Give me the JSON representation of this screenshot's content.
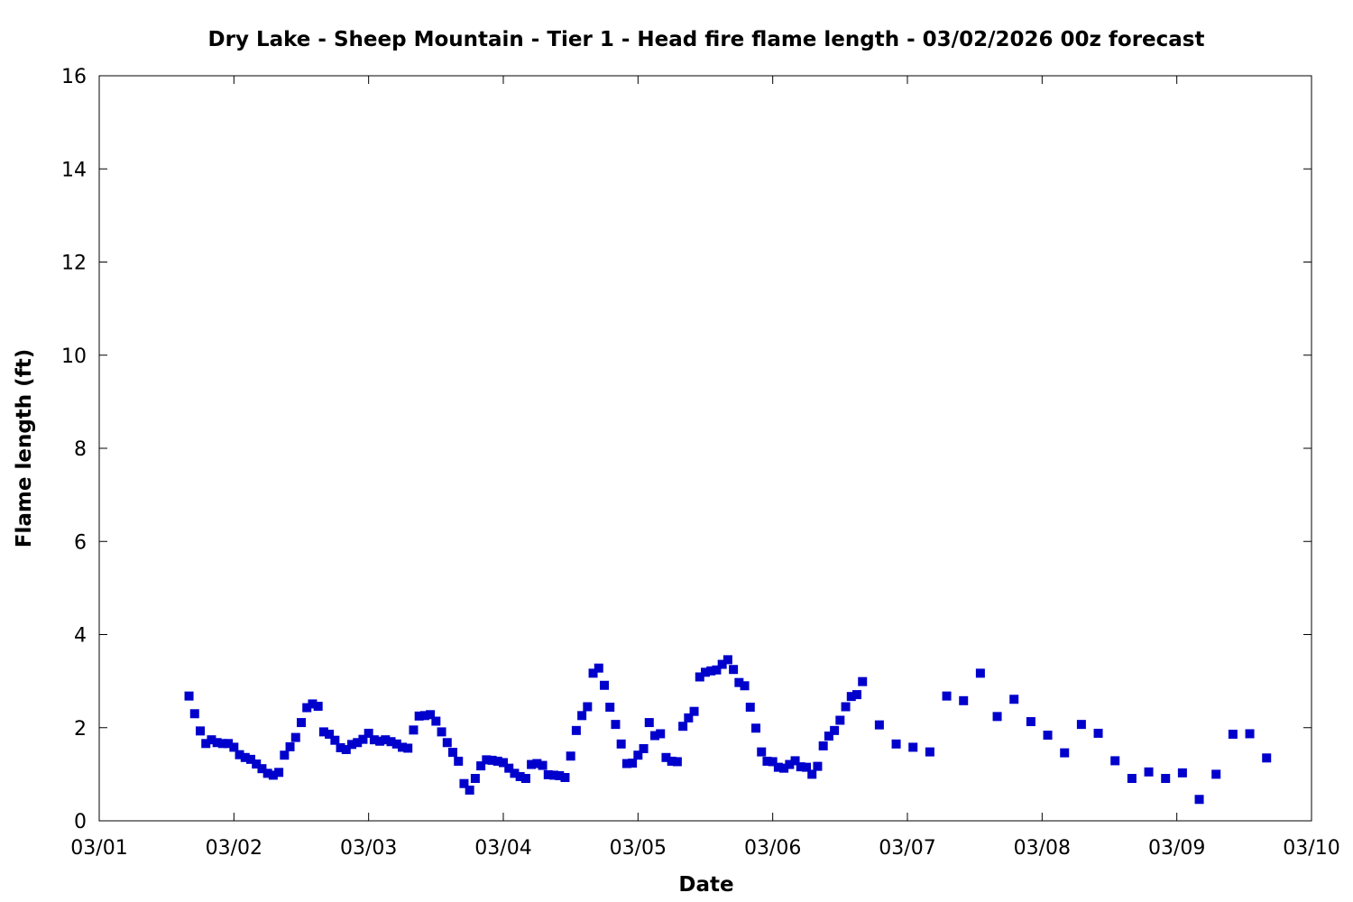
{
  "chart_data": {
    "type": "scatter",
    "title": "Dry Lake - Sheep Mountain - Tier 1 - Head fire flame length - 03/02/2026 00z forecast",
    "xlabel": "Date",
    "ylabel": "Flame length (ft)",
    "xlim": [
      "2026-03-01T00:00",
      "2026-03-10T00:00"
    ],
    "ylim": [
      0,
      16
    ],
    "x_tick_labels": [
      "03/01",
      "03/02",
      "03/03",
      "03/04",
      "03/05",
      "03/06",
      "03/07",
      "03/08",
      "03/09",
      "03/10"
    ],
    "y_tick_labels": [
      "0",
      "2",
      "4",
      "6",
      "8",
      "10",
      "12",
      "14",
      "16"
    ],
    "grid": false,
    "marker_color": "#0000cc",
    "series": [
      {
        "x": [
          "2026-03-01T16:00",
          "2026-03-01T17:00",
          "2026-03-01T18:00",
          "2026-03-01T19:00",
          "2026-03-01T20:00",
          "2026-03-01T21:00",
          "2026-03-01T22:00",
          "2026-03-01T23:00",
          "2026-03-02T00:00",
          "2026-03-02T01:00",
          "2026-03-02T02:00",
          "2026-03-02T03:00",
          "2026-03-02T04:00",
          "2026-03-02T05:00",
          "2026-03-02T06:00",
          "2026-03-02T07:00",
          "2026-03-02T08:00",
          "2026-03-02T09:00",
          "2026-03-02T10:00",
          "2026-03-02T11:00",
          "2026-03-02T12:00",
          "2026-03-02T13:00",
          "2026-03-02T14:00",
          "2026-03-02T15:00",
          "2026-03-02T16:00",
          "2026-03-02T17:00",
          "2026-03-02T18:00",
          "2026-03-02T19:00",
          "2026-03-02T20:00",
          "2026-03-02T21:00",
          "2026-03-02T22:00",
          "2026-03-02T23:00",
          "2026-03-03T00:00",
          "2026-03-03T01:00",
          "2026-03-03T02:00",
          "2026-03-03T03:00",
          "2026-03-03T04:00",
          "2026-03-03T05:00",
          "2026-03-03T06:00",
          "2026-03-03T07:00",
          "2026-03-03T08:00",
          "2026-03-03T09:00",
          "2026-03-03T10:00",
          "2026-03-03T11:00",
          "2026-03-03T12:00",
          "2026-03-03T13:00",
          "2026-03-03T14:00",
          "2026-03-03T15:00",
          "2026-03-03T16:00",
          "2026-03-03T17:00",
          "2026-03-03T18:00",
          "2026-03-03T19:00",
          "2026-03-03T20:00",
          "2026-03-03T21:00",
          "2026-03-03T22:00",
          "2026-03-03T23:00",
          "2026-03-04T00:00",
          "2026-03-04T01:00",
          "2026-03-04T02:00",
          "2026-03-04T03:00",
          "2026-03-04T04:00",
          "2026-03-04T05:00",
          "2026-03-04T06:00",
          "2026-03-04T07:00",
          "2026-03-04T08:00",
          "2026-03-04T09:00",
          "2026-03-04T10:00",
          "2026-03-04T11:00",
          "2026-03-04T12:00",
          "2026-03-04T13:00",
          "2026-03-04T14:00",
          "2026-03-04T15:00",
          "2026-03-04T16:00",
          "2026-03-04T17:00",
          "2026-03-04T18:00",
          "2026-03-04T19:00",
          "2026-03-04T20:00",
          "2026-03-04T21:00",
          "2026-03-04T22:00",
          "2026-03-04T23:00",
          "2026-03-05T00:00",
          "2026-03-05T01:00",
          "2026-03-05T02:00",
          "2026-03-05T03:00",
          "2026-03-05T04:00",
          "2026-03-05T05:00",
          "2026-03-05T06:00",
          "2026-03-05T07:00",
          "2026-03-05T08:00",
          "2026-03-05T09:00",
          "2026-03-05T10:00",
          "2026-03-05T11:00",
          "2026-03-05T12:00",
          "2026-03-05T13:00",
          "2026-03-05T14:00",
          "2026-03-05T15:00",
          "2026-03-05T16:00",
          "2026-03-05T17:00",
          "2026-03-05T18:00",
          "2026-03-05T19:00",
          "2026-03-05T20:00",
          "2026-03-05T21:00",
          "2026-03-05T22:00",
          "2026-03-05T23:00",
          "2026-03-06T00:00",
          "2026-03-06T01:00",
          "2026-03-06T02:00",
          "2026-03-06T03:00",
          "2026-03-06T04:00",
          "2026-03-06T05:00",
          "2026-03-06T06:00",
          "2026-03-06T07:00",
          "2026-03-06T08:00",
          "2026-03-06T09:00",
          "2026-03-06T10:00",
          "2026-03-06T11:00",
          "2026-03-06T12:00",
          "2026-03-06T13:00",
          "2026-03-06T14:00",
          "2026-03-06T15:00",
          "2026-03-06T16:00",
          "2026-03-06T19:00",
          "2026-03-06T22:00",
          "2026-03-07T01:00",
          "2026-03-07T04:00",
          "2026-03-07T07:00",
          "2026-03-07T10:00",
          "2026-03-07T13:00",
          "2026-03-07T16:00",
          "2026-03-07T19:00",
          "2026-03-07T22:00",
          "2026-03-08T01:00",
          "2026-03-08T04:00",
          "2026-03-08T07:00",
          "2026-03-08T10:00",
          "2026-03-08T13:00",
          "2026-03-08T16:00",
          "2026-03-08T19:00",
          "2026-03-08T22:00",
          "2026-03-09T01:00",
          "2026-03-09T04:00",
          "2026-03-09T07:00",
          "2026-03-09T10:00",
          "2026-03-09T13:00",
          "2026-03-09T16:00"
        ],
        "y": [
          2.68,
          2.3,
          1.93,
          1.66,
          1.74,
          1.68,
          1.66,
          1.66,
          1.58,
          1.42,
          1.36,
          1.32,
          1.22,
          1.12,
          1.02,
          0.98,
          1.04,
          1.41,
          1.59,
          1.79,
          2.11,
          2.43,
          2.51,
          2.46,
          1.91,
          1.86,
          1.73,
          1.57,
          1.53,
          1.64,
          1.68,
          1.75,
          1.88,
          1.74,
          1.71,
          1.74,
          1.7,
          1.65,
          1.58,
          1.56,
          1.95,
          2.25,
          2.26,
          2.28,
          2.14,
          1.91,
          1.68,
          1.47,
          1.28,
          0.8,
          0.66,
          0.91,
          1.18,
          1.31,
          1.3,
          1.28,
          1.25,
          1.13,
          1.02,
          0.95,
          0.91,
          1.21,
          1.23,
          1.19,
          0.99,
          0.98,
          0.97,
          0.93,
          1.39,
          1.94,
          2.26,
          2.45,
          3.17,
          3.28,
          2.91,
          2.44,
          2.07,
          1.65,
          1.23,
          1.24,
          1.41,
          1.55,
          2.11,
          1.83,
          1.87,
          1.36,
          1.28,
          1.27,
          2.03,
          2.21,
          2.35,
          3.09,
          3.19,
          3.22,
          3.24,
          3.36,
          3.46,
          3.25,
          2.97,
          2.9,
          2.44,
          1.99,
          1.48,
          1.28,
          1.27,
          1.15,
          1.13,
          1.21,
          1.29,
          1.16,
          1.15,
          1.0,
          1.17,
          1.61,
          1.82,
          1.94,
          2.16,
          2.45,
          2.67,
          2.71,
          2.99,
          2.06,
          1.65,
          1.58,
          1.48,
          2.68,
          2.58,
          3.17,
          2.24,
          2.61,
          2.13,
          1.84,
          1.46,
          2.07,
          1.88,
          1.29,
          0.91,
          1.05,
          0.91,
          1.03,
          0.46,
          1.0,
          1.86,
          1.87,
          1.35
        ]
      }
    ]
  }
}
